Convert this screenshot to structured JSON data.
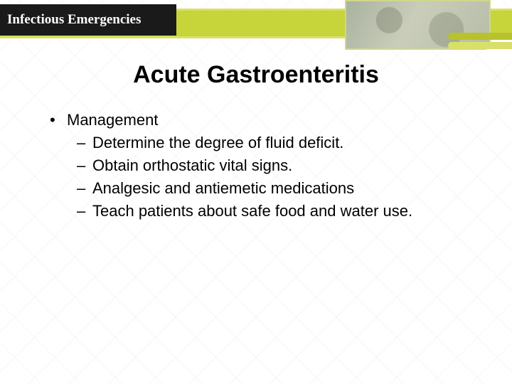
{
  "header": {
    "section_title": "Infectious Emergencies",
    "band_color": "#c7d43a",
    "band_stripe_color": "#d8e06a",
    "title_box_bg": "#1a1a1a",
    "title_text_color": "#ffffff",
    "title_fontsize": 19,
    "corner_colors": [
      "#b8c22c",
      "#d8e06a"
    ]
  },
  "slide": {
    "title": "Acute Gastroenteritis",
    "title_fontsize": 34,
    "title_color": "#000000",
    "body_fontsize": 22,
    "body_color": "#000000",
    "bullets": [
      {
        "text": "Management",
        "children": [
          "Determine the degree of fluid deficit.",
          "Obtain orthostatic vital signs.",
          "Analgesic and antiemetic medications",
          "Teach patients about safe food and water use."
        ]
      }
    ],
    "bullet_marker": "•",
    "sub_bullet_marker": "–"
  },
  "background_color": "#ffffff"
}
